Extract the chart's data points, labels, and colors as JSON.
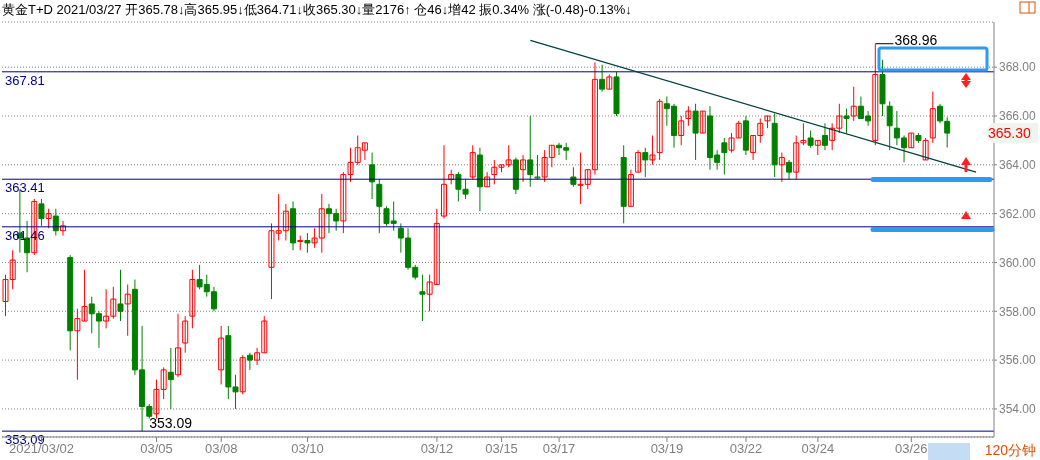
{
  "chart_data": {
    "type": "candlestick",
    "title": "黄金T+D 2021/03/27 开365.78↓高365.95↓低364.71↓收365.30↓量2176↑ 仓46↓增42 振0.34% 涨(-0.48)-0.13%↓",
    "categories": [
      null,
      null,
      null,
      null,
      null,
      "2021/03/02",
      null,
      null,
      null,
      null,
      null,
      null,
      null,
      null,
      null,
      null,
      null,
      null,
      null,
      null,
      null,
      "03/05",
      null,
      null,
      null,
      null,
      null,
      null,
      null,
      null,
      "03/08",
      null,
      null,
      null,
      null,
      null,
      null,
      null,
      null,
      null,
      null,
      null,
      "03/10",
      null,
      null,
      null,
      null,
      null,
      null,
      null,
      null,
      null,
      null,
      null,
      null,
      null,
      null,
      null,
      null,
      null,
      "03/12",
      null,
      null,
      null,
      null,
      null,
      null,
      null,
      null,
      "03/15",
      null,
      null,
      null,
      null,
      null,
      null,
      null,
      "03/17",
      null,
      null,
      null,
      null,
      null,
      null,
      null,
      null,
      null,
      null,
      null,
      null,
      null,
      null,
      "03/19",
      null,
      null,
      null,
      null,
      null,
      null,
      null,
      null,
      null,
      null,
      "03/22",
      null,
      null,
      null,
      null,
      null,
      null,
      null,
      null,
      null,
      "03/24",
      null,
      null,
      null,
      null,
      null,
      null,
      null,
      null,
      null,
      null,
      null,
      null,
      "03/26",
      null,
      null,
      null,
      null,
      null,
      null,
      null,
      null,
      null,
      null,
      null
    ],
    "series": [
      {
        "type": "candlestick",
        "ohlc": [
          [
            358.4,
            359.5,
            357.8,
            359.3
          ],
          [
            359.3,
            360.5,
            358.9,
            360.1
          ],
          [
            361.2,
            363.0,
            360.4,
            361.0
          ],
          [
            361.0,
            361.7,
            359.6,
            360.4
          ],
          [
            360.4,
            362.6,
            360.3,
            362.5
          ],
          [
            362.4,
            362.6,
            361.5,
            361.8
          ],
          [
            361.8,
            362.2,
            361.4,
            362.0
          ],
          [
            361.9,
            362.2,
            361.1,
            361.3
          ],
          [
            361.3,
            361.7,
            361.1,
            361.5
          ],
          [
            360.2,
            360.3,
            356.4,
            357.2
          ],
          [
            357.2,
            358.1,
            355.2,
            357.7
          ],
          [
            357.6,
            359.7,
            357.6,
            358.2
          ],
          [
            358.3,
            358.6,
            357.1,
            357.9
          ],
          [
            357.9,
            358.0,
            356.5,
            357.6
          ],
          [
            357.6,
            358.9,
            357.3,
            357.8
          ],
          [
            357.8,
            359.0,
            357.7,
            358.5
          ],
          [
            358.3,
            359.7,
            357.6,
            358.0
          ],
          [
            358.3,
            359.1,
            357.0,
            358.7
          ],
          [
            358.9,
            359.3,
            355.4,
            355.6
          ],
          [
            355.6,
            357.4,
            353.09,
            354.1
          ],
          [
            354.1,
            354.2,
            353.6,
            353.7
          ],
          [
            353.8,
            355.2,
            353.6,
            354.8
          ],
          [
            354.8,
            355.7,
            354.4,
            355.6
          ],
          [
            355.5,
            356.5,
            354.0,
            355.2
          ],
          [
            355.4,
            357.9,
            355.3,
            356.5
          ],
          [
            356.7,
            357.8,
            356.3,
            357.6
          ],
          [
            357.8,
            359.7,
            357.3,
            359.3
          ],
          [
            359.3,
            359.9,
            358.9,
            359.0
          ],
          [
            359.1,
            359.5,
            358.6,
            358.8
          ],
          [
            358.8,
            359.0,
            358.0,
            358.1
          ],
          [
            355.6,
            357.4,
            355.0,
            356.9
          ],
          [
            357.0,
            357.4,
            354.4,
            354.9
          ],
          [
            354.9,
            355.4,
            354.0,
            354.7
          ],
          [
            354.7,
            356.2,
            354.6,
            356.1
          ],
          [
            356.2,
            356.3,
            355.6,
            356.0
          ],
          [
            356.0,
            356.5,
            355.8,
            356.3
          ],
          [
            356.3,
            357.8,
            356.3,
            357.6
          ],
          [
            359.8,
            361.6,
            358.5,
            361.3
          ],
          [
            361.2,
            362.8,
            360.9,
            361.3
          ],
          [
            361.3,
            362.4,
            360.9,
            362.1
          ],
          [
            362.2,
            362.5,
            360.5,
            360.8
          ],
          [
            360.9,
            361.1,
            360.5,
            360.9
          ],
          [
            360.9,
            361.2,
            360.4,
            360.8
          ],
          [
            360.8,
            361.4,
            360.6,
            361.0
          ],
          [
            361.0,
            362.8,
            360.4,
            362.2
          ],
          [
            362.2,
            362.4,
            361.2,
            362.0
          ],
          [
            362.0,
            362.2,
            361.3,
            361.7
          ],
          [
            361.7,
            363.7,
            361.2,
            363.6
          ],
          [
            363.6,
            364.7,
            363.3,
            364.1
          ],
          [
            364.1,
            365.2,
            364.0,
            364.7
          ],
          [
            364.6,
            364.9,
            364.2,
            364.9
          ],
          [
            364.0,
            364.5,
            362.6,
            363.3
          ],
          [
            363.2,
            363.4,
            361.2,
            362.3
          ],
          [
            362.2,
            362.3,
            361.5,
            361.6
          ],
          [
            361.7,
            362.5,
            361.3,
            361.6
          ],
          [
            361.4,
            361.6,
            360.4,
            361.0
          ],
          [
            361.0,
            361.4,
            359.7,
            359.8
          ],
          [
            359.8,
            359.9,
            359.3,
            359.4
          ],
          [
            358.8,
            359.5,
            357.6,
            358.7
          ],
          [
            358.7,
            359.5,
            358.0,
            359.2
          ],
          [
            359.1,
            362.2,
            359.1,
            361.6
          ],
          [
            361.9,
            364.8,
            361.8,
            363.2
          ],
          [
            363.4,
            363.8,
            363.2,
            363.6
          ],
          [
            363.6,
            363.7,
            362.5,
            363.0
          ],
          [
            363.0,
            363.4,
            362.6,
            362.8
          ],
          [
            363.5,
            364.8,
            363.4,
            364.5
          ],
          [
            364.4,
            364.7,
            362.1,
            363.1
          ],
          [
            363.1,
            363.7,
            363.1,
            363.5
          ],
          [
            363.6,
            364.2,
            363.2,
            363.9
          ],
          [
            363.9,
            364.0,
            363.7,
            364.0
          ],
          [
            364.0,
            364.8,
            363.9,
            364.2
          ],
          [
            364.2,
            364.3,
            362.8,
            363.0
          ],
          [
            363.8,
            364.4,
            363.3,
            364.2
          ],
          [
            364.2,
            366.0,
            363.1,
            363.6
          ],
          [
            363.5,
            364.4,
            363.4,
            363.5
          ],
          [
            363.5,
            364.6,
            363.3,
            364.3
          ],
          [
            364.3,
            364.8,
            363.9,
            364.8
          ],
          [
            364.8,
            364.9,
            364.4,
            364.7
          ],
          [
            364.7,
            364.9,
            364.2,
            364.6
          ],
          [
            363.5,
            363.9,
            363.1,
            363.2
          ],
          [
            363.2,
            364.5,
            362.4,
            363.2
          ],
          [
            363.2,
            363.8,
            363.0,
            363.8
          ],
          [
            363.8,
            368.2,
            363.6,
            367.5
          ],
          [
            367.5,
            368.1,
            367.0,
            367.1
          ],
          [
            367.1,
            367.7,
            367.1,
            367.6
          ],
          [
            367.6,
            367.8,
            366.0,
            366.1
          ],
          [
            364.3,
            364.8,
            361.6,
            362.3
          ],
          [
            362.3,
            363.8,
            362.3,
            363.6
          ],
          [
            363.7,
            364.6,
            363.7,
            364.5
          ],
          [
            364.5,
            364.7,
            363.5,
            364.2
          ],
          [
            364.2,
            365.2,
            364.0,
            364.4
          ],
          [
            364.5,
            366.7,
            364.2,
            366.6
          ],
          [
            366.5,
            366.8,
            365.6,
            366.3
          ],
          [
            366.4,
            366.5,
            364.7,
            365.2
          ],
          [
            365.2,
            366.0,
            364.8,
            365.8
          ],
          [
            365.9,
            366.4,
            365.6,
            366.2
          ],
          [
            366.2,
            366.5,
            364.2,
            365.3
          ],
          [
            365.3,
            366.2,
            365.3,
            366.2
          ],
          [
            366.0,
            366.4,
            363.8,
            364.3
          ],
          [
            364.4,
            364.6,
            363.8,
            364.1
          ],
          [
            364.9,
            365.1,
            363.6,
            364.5
          ],
          [
            364.6,
            365.3,
            364.5,
            365.1
          ],
          [
            365.1,
            365.8,
            365.1,
            365.7
          ],
          [
            365.8,
            366.0,
            364.4,
            364.6
          ],
          [
            364.5,
            365.2,
            364.2,
            365.2
          ],
          [
            365.2,
            365.9,
            364.9,
            365.7
          ],
          [
            365.8,
            366.0,
            365.5,
            366.0
          ],
          [
            365.7,
            366.1,
            363.5,
            364.0
          ],
          [
            364.0,
            364.5,
            363.3,
            364.3
          ],
          [
            364.1,
            364.2,
            363.4,
            363.7
          ],
          [
            363.7,
            365.2,
            363.4,
            364.9
          ],
          [
            364.9,
            365.7,
            364.8,
            365.0
          ],
          [
            365.1,
            365.4,
            364.7,
            364.8
          ],
          [
            364.8,
            365.0,
            364.4,
            365.0
          ],
          [
            365.2,
            365.7,
            364.6,
            364.8
          ],
          [
            365.0,
            365.7,
            364.6,
            365.5
          ],
          [
            365.5,
            366.5,
            365.3,
            366.0
          ],
          [
            366.0,
            366.3,
            365.3,
            365.9
          ],
          [
            366.0,
            367.2,
            365.8,
            366.4
          ],
          [
            366.4,
            366.8,
            365.9,
            365.9
          ],
          [
            366.0,
            366.2,
            365.6,
            365.8
          ],
          [
            365.0,
            368.96,
            364.8,
            367.7
          ],
          [
            367.7,
            368.3,
            366.0,
            366.5
          ],
          [
            366.4,
            366.6,
            364.6,
            365.6
          ],
          [
            365.5,
            366.2,
            364.8,
            365.1
          ],
          [
            365.1,
            365.2,
            364.1,
            364.7
          ],
          [
            364.7,
            365.3,
            364.7,
            365.3
          ],
          [
            365.2,
            365.3,
            364.9,
            365.0
          ],
          [
            364.2,
            365.1,
            364.2,
            365.0
          ],
          [
            365.1,
            367.0,
            364.9,
            366.3
          ],
          [
            366.4,
            366.5,
            365.7,
            365.8
          ],
          [
            365.78,
            365.95,
            364.71,
            365.3
          ],
          null,
          null,
          null,
          null,
          null,
          null
        ],
        "colors": [
          "#ff0000",
          "#ff0000",
          "#008000",
          "#008000",
          "#ff0000",
          "#008000",
          "#ff0000",
          "#008000",
          "#ff0000",
          "#008000",
          "#ff0000",
          "#ff0000",
          "#008000",
          "#008000",
          "#ff0000",
          "#ff0000",
          "#008000",
          "#ff0000",
          "#008000",
          "#008000",
          "#008000",
          "#ff0000",
          "#ff0000",
          "#008000",
          "#ff0000",
          "#ff0000",
          "#ff0000",
          "#008000",
          "#008000",
          "#008000",
          "#ff0000",
          "#008000",
          "#008000",
          "#ff0000",
          "#008000",
          "#ff0000",
          "#ff0000",
          "#ff0000",
          "#ff0000",
          "#ff0000",
          "#008000",
          "#ff0000",
          "#008000",
          "#ff0000",
          "#ff0000",
          "#008000",
          "#008000",
          "#ff0000",
          "#ff0000",
          "#ff0000",
          "#ff0000",
          "#008000",
          "#008000",
          "#008000",
          "#008000",
          "#008000",
          "#008000",
          "#008000",
          "#008000",
          "#ff0000",
          "#ff0000",
          "#ff0000",
          "#ff0000",
          "#008000",
          "#008000",
          "#ff0000",
          "#008000",
          "#ff0000",
          "#ff0000",
          "#ff0000",
          "#ff0000",
          "#008000",
          "#ff0000",
          "#008000",
          "#008000",
          "#ff0000",
          "#ff0000",
          "#008000",
          "#008000",
          "#008000",
          "#ff0000",
          "#ff0000",
          "#ff0000",
          "#008000",
          "#ff0000",
          "#008000",
          "#008000",
          "#ff0000",
          "#ff0000",
          "#008000",
          "#ff0000",
          "#ff0000",
          "#008000",
          "#008000",
          "#ff0000",
          "#ff0000",
          "#008000",
          "#ff0000",
          "#008000",
          "#008000",
          "#008000",
          "#ff0000",
          "#ff0000",
          "#008000",
          "#ff0000",
          "#ff0000",
          "#ff0000",
          "#008000",
          "#ff0000",
          "#008000",
          "#ff0000",
          "#ff0000",
          "#008000",
          "#ff0000",
          "#008000",
          "#ff0000",
          "#ff0000",
          "#008000",
          "#ff0000",
          "#008000",
          "#008000",
          "#ff0000",
          "#008000",
          "#008000",
          "#008000",
          "#008000",
          "#ff0000",
          "#008000",
          "#ff0000",
          "#ff0000",
          "#008000",
          "#008000",
          null,
          null,
          null,
          null,
          null,
          null
        ]
      },
      {
        "type": "line",
        "color": "#004040",
        "values": [
          null,
          null,
          null,
          null,
          null,
          null,
          null,
          null,
          null,
          null,
          null,
          null,
          null,
          null,
          null,
          null,
          null,
          null,
          null,
          null,
          null,
          null,
          null,
          null,
          null,
          null,
          null,
          null,
          null,
          null,
          null,
          null,
          null,
          null,
          null,
          null,
          null,
          null,
          null,
          null,
          null,
          null,
          null,
          null,
          null,
          null,
          null,
          null,
          null,
          null,
          null,
          null,
          null,
          null,
          null,
          null,
          null,
          null,
          null,
          null,
          null,
          null,
          null,
          null,
          null,
          null,
          null,
          null,
          null,
          null,
          null,
          null,
          null,
          369.1,
          null,
          null,
          null,
          null,
          null,
          null,
          null,
          null,
          null,
          null,
          null,
          null,
          null,
          null,
          null,
          null,
          null,
          null,
          null,
          null,
          null,
          null,
          null,
          null,
          null,
          null,
          null,
          null,
          null,
          null,
          null,
          null,
          null,
          null,
          null,
          null,
          null,
          null,
          null,
          null,
          null,
          null,
          null,
          null,
          null,
          null,
          null,
          null,
          null,
          null,
          null,
          null,
          null,
          null,
          null,
          null,
          null,
          null,
          null,
          null,
          null,
          363.7,
          null,
          null
        ]
      }
    ],
    "ylim": [
      352.85,
      369.85
    ],
    "yticks": [
      {
        "value": 354,
        "label": "354.00"
      },
      {
        "value": 356,
        "label": "356.00"
      },
      {
        "value": 358,
        "label": "358.00"
      },
      {
        "value": 360,
        "label": "360.00"
      },
      {
        "value": 362,
        "label": "362.00"
      },
      {
        "value": 364,
        "label": "364.00"
      },
      {
        "value": 366,
        "label": "366.00"
      },
      {
        "value": 368,
        "label": "368.00"
      }
    ],
    "grid": "y",
    "ref_lines": [
      {
        "axis": "y",
        "value": 367.81,
        "label": "367.81",
        "color": "#000080"
      },
      {
        "axis": "y",
        "value": 363.41,
        "label": "363.41",
        "color": "#000080"
      },
      {
        "axis": "y",
        "value": 361.46,
        "label": "361.46",
        "color": "#000080"
      },
      {
        "axis": "y",
        "value": 353.09,
        "label": "353.09",
        "color": "#000080"
      }
    ],
    "annotations": [
      "368.96",
      "353.09",
      "365.30",
      "120分钟"
    ]
  }
}
